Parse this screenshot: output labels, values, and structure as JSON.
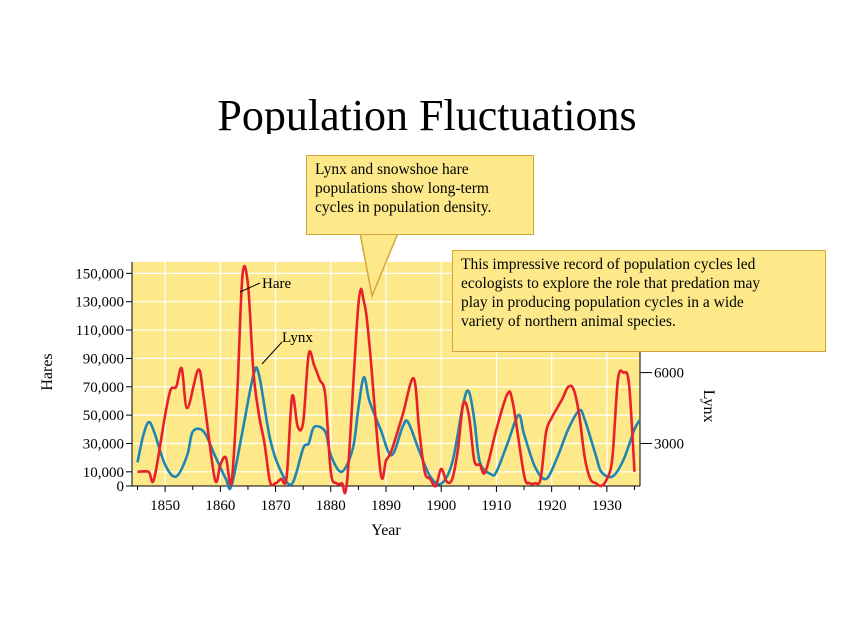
{
  "slide": {
    "title": "Population Fluctuations"
  },
  "callouts": [
    {
      "lines": [
        "Lynx and snowshoe hare",
        "populations show long-term",
        "cycles in population density."
      ]
    },
    {
      "lines": [
        "This impressive record of population cycles led",
        "ecologists to explore the role that predation may",
        "play in producing population cycles in a wide",
        "variety of northern animal species."
      ]
    }
  ],
  "colors": {
    "plot_background": "#fde98a",
    "grid": "#ffffff",
    "hare": "#e8202a",
    "lynx": "#1f86b4",
    "callout_border": "#d8a53a"
  },
  "chart_data": {
    "type": "line",
    "xlabel": "Year",
    "ylabel": "Hares",
    "y2label": "Lynx",
    "xlim": [
      1844,
      1936
    ],
    "ylim": [
      0,
      160000
    ],
    "y2lim_note": "right axis: 3000 at hares 30,000; 6000 at hares 80,000",
    "xticks": [
      1850,
      1860,
      1870,
      1880,
      1890,
      1900,
      1910,
      1920,
      1930
    ],
    "yticks": [
      0,
      10000,
      30000,
      50000,
      70000,
      90000,
      110000,
      130000,
      150000
    ],
    "ytick_labels": [
      "0",
      "10,000",
      "30,000",
      "50,000",
      "70,000",
      "90,000",
      "110,000",
      "130,000",
      "150,000"
    ],
    "y2ticks": [
      3000,
      6000
    ],
    "grid": true,
    "series": [
      {
        "name": "Hare",
        "axis": "left",
        "x": [
          1845,
          1847,
          1848,
          1850,
          1851,
          1852,
          1853,
          1854,
          1856,
          1857,
          1859,
          1860,
          1861,
          1862,
          1863,
          1864,
          1865,
          1866,
          1867,
          1868,
          1869,
          1870,
          1871,
          1872,
          1873,
          1874,
          1875,
          1876,
          1877,
          1878,
          1879,
          1880,
          1881,
          1882,
          1883,
          1885,
          1886,
          1887,
          1889,
          1890,
          1891,
          1893,
          1895,
          1896,
          1897,
          1898,
          1899,
          1900,
          1901,
          1902,
          1903,
          1904,
          1905,
          1906,
          1907,
          1908,
          1910,
          1912,
          1913,
          1915,
          1916,
          1917,
          1918,
          1919,
          1920,
          1921,
          1922,
          1923,
          1924,
          1925,
          1926,
          1927,
          1928,
          1929,
          1930,
          1931,
          1932,
          1933,
          1934,
          1935
        ],
        "values": [
          10000,
          10000,
          5000,
          50000,
          68000,
          70000,
          83000,
          55000,
          82000,
          62000,
          5000,
          15000,
          20000,
          2000,
          60000,
          148000,
          142000,
          80000,
          50000,
          30000,
          3000,
          2000,
          5000,
          6000,
          63000,
          42000,
          45000,
          93000,
          85000,
          75000,
          64000,
          10000,
          2000,
          2000,
          5000,
          128000,
          130000,
          100000,
          10000,
          18000,
          25000,
          50000,
          76000,
          40000,
          10000,
          5000,
          0,
          12000,
          3000,
          5000,
          25000,
          58000,
          50000,
          18000,
          15000,
          10000,
          40000,
          65000,
          58000,
          8000,
          2000,
          2000,
          5000,
          38000,
          48000,
          55000,
          62000,
          70000,
          68000,
          50000,
          20000,
          5000,
          2000,
          0,
          5000,
          20000,
          75000,
          80000,
          72000,
          10000
        ]
      },
      {
        "name": "Lynx",
        "axis": "right",
        "x": [
          1845,
          1846,
          1847,
          1848,
          1850,
          1852,
          1854,
          1855,
          1857,
          1859,
          1861,
          1862,
          1864,
          1866,
          1867,
          1869,
          1871,
          1873,
          1875,
          1876,
          1877,
          1879,
          1880,
          1882,
          1884,
          1885,
          1886,
          1887,
          1889,
          1891,
          1893,
          1894,
          1896,
          1898,
          1900,
          1902,
          1904,
          1905,
          1906,
          1907,
          1909,
          1910,
          1912,
          1914,
          1915,
          1917,
          1919,
          1921,
          1923,
          1925,
          1926,
          1928,
          1929,
          1931,
          1933,
          1935,
          1936
        ],
        "values": [
          2200,
          3300,
          3900,
          3500,
          2100,
          1600,
          2500,
          3500,
          3500,
          2500,
          1500,
          1200,
          3500,
          5900,
          5900,
          3200,
          1800,
          1300,
          2800,
          3000,
          3700,
          3500,
          2500,
          1800,
          2800,
          4500,
          5800,
          4800,
          3600,
          2500,
          3700,
          3900,
          2700,
          1600,
          1300,
          2200,
          4700,
          5200,
          4000,
          2200,
          1700,
          1800,
          3000,
          4200,
          3400,
          2000,
          1500,
          2400,
          3600,
          4400,
          4000,
          2500,
          1800,
          1600,
          2300,
          3600,
          4000
        ]
      }
    ],
    "annotations": [
      "Hare",
      "Lynx"
    ]
  }
}
